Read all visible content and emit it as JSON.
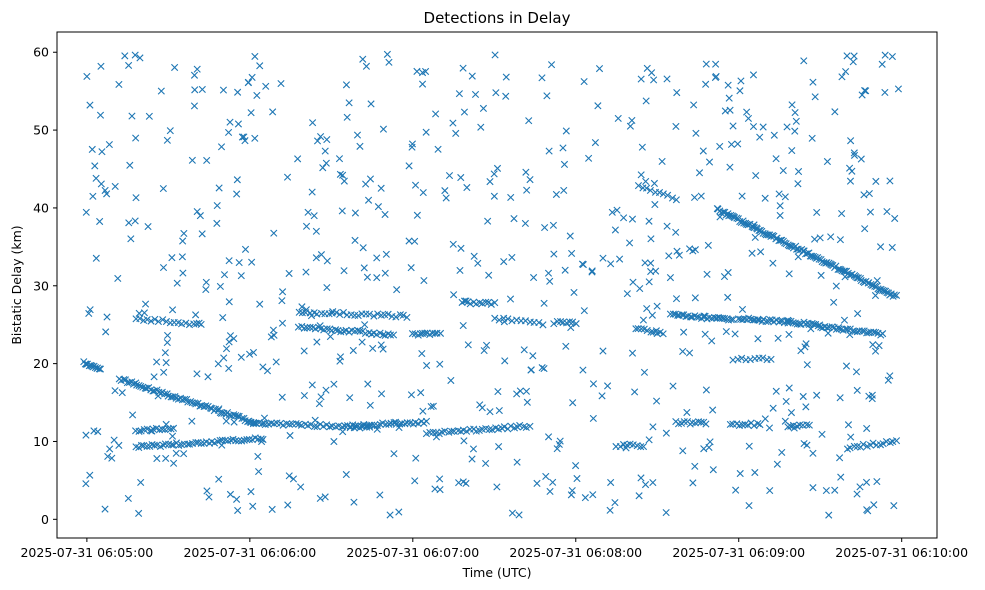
{
  "chart_data": {
    "type": "scatter",
    "title": "Detections in Delay",
    "xlabel": "Time (UTC)",
    "ylabel": "Bistatic Delay (km)",
    "x_scale": "time",
    "xlim": [
      "2025-07-31 06:04:49",
      "2025-07-31 06:10:13"
    ],
    "ylim": [
      -2.4,
      62.6
    ],
    "xticks": [
      "2025-07-31 06:05:00",
      "2025-07-31 06:06:00",
      "2025-07-31 06:07:00",
      "2025-07-31 06:08:00",
      "2025-07-31 06:09:00",
      "2025-07-31 06:10:00"
    ],
    "yticks": [
      0,
      10,
      20,
      30,
      40,
      50,
      60
    ],
    "marker": "x",
    "color": "#1f77b4",
    "grid": false,
    "legend": "none",
    "tracks": [
      {
        "start": "2025-07-31 06:04:59",
        "end": "2025-07-31 06:05:05",
        "delay_start": 20.2,
        "delay_end": 19.2,
        "detections": 14
      },
      {
        "start": "2025-07-31 06:05:12",
        "end": "2025-07-31 06:06:02",
        "delay_start": 18.0,
        "delay_end": 12.4,
        "detections": 70
      },
      {
        "start": "2025-07-31 06:05:18",
        "end": "2025-07-31 06:06:05",
        "delay_start": 9.3,
        "delay_end": 10.4,
        "detections": 48
      },
      {
        "start": "2025-07-31 06:05:18",
        "end": "2025-07-31 06:05:32",
        "delay_start": 11.3,
        "delay_end": 11.8,
        "detections": 14
      },
      {
        "start": "2025-07-31 06:05:18",
        "end": "2025-07-31 06:05:42",
        "delay_start": 25.8,
        "delay_end": 25.0,
        "detections": 18
      },
      {
        "start": "2025-07-31 06:06:00",
        "end": "2025-07-31 06:06:44",
        "delay_start": 12.4,
        "delay_end": 11.8,
        "detections": 40
      },
      {
        "start": "2025-07-31 06:06:18",
        "end": "2025-07-31 06:06:53",
        "delay_start": 24.7,
        "delay_end": 23.7,
        "detections": 35
      },
      {
        "start": "2025-07-31 06:06:18",
        "end": "2025-07-31 06:06:58",
        "delay_start": 26.6,
        "delay_end": 26.1,
        "detections": 30
      },
      {
        "start": "2025-07-31 06:06:38",
        "end": "2025-07-31 06:07:05",
        "delay_start": 12.0,
        "delay_end": 12.5,
        "detections": 28
      },
      {
        "start": "2025-07-31 06:07:05",
        "end": "2025-07-31 06:07:43",
        "delay_start": 11.0,
        "delay_end": 12.0,
        "detections": 34
      },
      {
        "start": "2025-07-31 06:07:00",
        "end": "2025-07-31 06:07:10",
        "delay_start": 23.8,
        "delay_end": 23.8,
        "detections": 12
      },
      {
        "start": "2025-07-31 06:07:18",
        "end": "2025-07-31 06:07:30",
        "delay_start": 27.9,
        "delay_end": 27.7,
        "detections": 12
      },
      {
        "start": "2025-07-31 06:07:30",
        "end": "2025-07-31 06:07:48",
        "delay_start": 25.8,
        "delay_end": 25.1,
        "detections": 12
      },
      {
        "start": "2025-07-31 06:07:52",
        "end": "2025-07-31 06:08:00",
        "delay_start": 25.3,
        "delay_end": 25.3,
        "detections": 8
      },
      {
        "start": "2025-07-31 06:08:15",
        "end": "2025-07-31 06:08:25",
        "delay_start": 9.5,
        "delay_end": 9.5,
        "detections": 9
      },
      {
        "start": "2025-07-31 06:08:23",
        "end": "2025-07-31 06:08:37",
        "delay_start": 42.8,
        "delay_end": 41.2,
        "detections": 10
      },
      {
        "start": "2025-07-31 06:08:22",
        "end": "2025-07-31 06:08:32",
        "delay_start": 24.5,
        "delay_end": 24.0,
        "detections": 10
      },
      {
        "start": "2025-07-31 06:08:35",
        "end": "2025-07-31 06:08:58",
        "delay_start": 26.3,
        "delay_end": 25.6,
        "detections": 30
      },
      {
        "start": "2025-07-31 06:08:37",
        "end": "2025-07-31 06:08:48",
        "delay_start": 12.4,
        "delay_end": 12.4,
        "detections": 12
      },
      {
        "start": "2025-07-31 06:08:58",
        "end": "2025-07-31 06:09:08",
        "delay_start": 12.2,
        "delay_end": 12.2,
        "detections": 10
      },
      {
        "start": "2025-07-31 06:08:58",
        "end": "2025-07-31 06:09:12",
        "delay_start": 20.6,
        "delay_end": 20.6,
        "detections": 10
      },
      {
        "start": "2025-07-31 06:08:52",
        "end": "2025-07-31 06:09:58",
        "delay_start": 39.8,
        "delay_end": 28.6,
        "detections": 120
      },
      {
        "start": "2025-07-31 06:09:00",
        "end": "2025-07-31 06:09:30",
        "delay_start": 25.8,
        "delay_end": 25.0,
        "detections": 40
      },
      {
        "start": "2025-07-31 06:09:30",
        "end": "2025-07-31 06:09:53",
        "delay_start": 24.8,
        "delay_end": 23.8,
        "detections": 28
      },
      {
        "start": "2025-07-31 06:09:18",
        "end": "2025-07-31 06:09:26",
        "delay_start": 12.0,
        "delay_end": 12.0,
        "detections": 8
      },
      {
        "start": "2025-07-31 06:09:40",
        "end": "2025-07-31 06:09:58",
        "delay_start": 9.2,
        "delay_end": 10.0,
        "detections": 16
      }
    ],
    "clutter": {
      "start": "2025-07-31 06:04:59",
      "end": "2025-07-31 06:09:59",
      "delay_min": 0.5,
      "delay_max": 59.8,
      "detections": 700
    }
  }
}
